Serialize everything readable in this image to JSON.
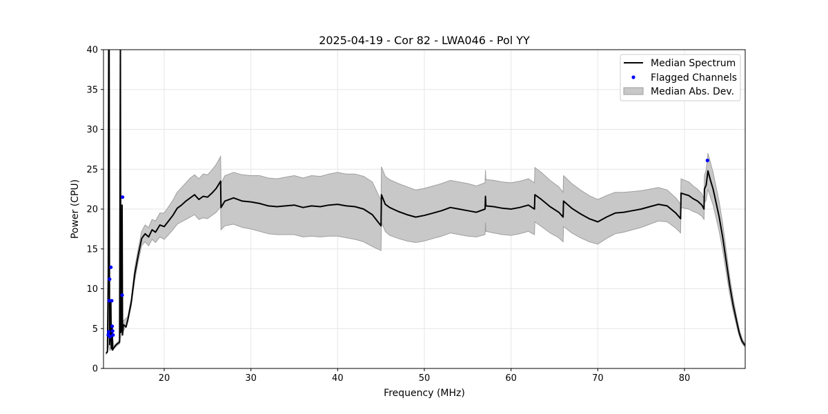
{
  "chart_data": {
    "type": "line",
    "title": "2025-04-19 - Cor 82 - LWA046 - Pol YY",
    "xlabel": "Frequency (MHz)",
    "ylabel": "Power (CPU)",
    "xlim": [
      13,
      87
    ],
    "ylim": [
      0,
      40
    ],
    "xticks": [
      20,
      30,
      40,
      50,
      60,
      70,
      80
    ],
    "yticks": [
      0,
      5,
      10,
      15,
      20,
      25,
      30,
      35,
      40
    ],
    "grid": true,
    "legend_position": "top-right",
    "colors": {
      "median": "#000000",
      "flagged": "#0000ff",
      "band_fill": "#c8c8c8",
      "band_edge": "#9e9e9e",
      "grid": "#e6e6e6"
    },
    "series": [
      {
        "name": "Median Spectrum",
        "kind": "line",
        "points": [
          [
            13.3,
            1.9
          ],
          [
            13.45,
            2.1
          ],
          [
            13.55,
            12.0
          ],
          [
            13.6,
            41.0
          ],
          [
            13.65,
            40.5
          ],
          [
            13.7,
            3.0
          ],
          [
            13.8,
            5.0
          ],
          [
            13.85,
            8.5
          ],
          [
            13.9,
            2.5
          ],
          [
            14.0,
            5.2
          ],
          [
            14.05,
            2.3
          ],
          [
            14.2,
            2.6
          ],
          [
            14.4,
            2.9
          ],
          [
            14.6,
            3.1
          ],
          [
            14.85,
            3.3
          ],
          [
            14.95,
            41.0
          ],
          [
            15.0,
            4.5
          ],
          [
            15.1,
            5.0
          ],
          [
            15.15,
            20.5
          ],
          [
            15.2,
            4.2
          ],
          [
            15.3,
            5.5
          ],
          [
            15.6,
            5.2
          ],
          [
            15.8,
            6.1
          ],
          [
            16.2,
            8.3
          ],
          [
            16.6,
            11.8
          ],
          [
            17.0,
            14.2
          ],
          [
            17.4,
            16.3
          ],
          [
            17.8,
            16.9
          ],
          [
            18.2,
            16.5
          ],
          [
            18.6,
            17.4
          ],
          [
            19.0,
            17.1
          ],
          [
            19.5,
            18.0
          ],
          [
            20.0,
            17.8
          ],
          [
            20.5,
            18.5
          ],
          [
            21.0,
            19.2
          ],
          [
            21.5,
            20.1
          ],
          [
            22.0,
            20.5
          ],
          [
            22.5,
            21.0
          ],
          [
            23.0,
            21.4
          ],
          [
            23.5,
            21.8
          ],
          [
            24.0,
            21.2
          ],
          [
            24.5,
            21.6
          ],
          [
            25.0,
            21.5
          ],
          [
            25.5,
            22.0
          ],
          [
            26.0,
            22.6
          ],
          [
            26.5,
            23.5
          ],
          [
            26.55,
            20.2
          ],
          [
            27.0,
            21.0
          ],
          [
            28.0,
            21.4
          ],
          [
            29.0,
            21.0
          ],
          [
            30.0,
            20.9
          ],
          [
            31.0,
            20.7
          ],
          [
            32.0,
            20.4
          ],
          [
            33.0,
            20.3
          ],
          [
            34.0,
            20.4
          ],
          [
            35.0,
            20.5
          ],
          [
            36.0,
            20.2
          ],
          [
            37.0,
            20.4
          ],
          [
            38.0,
            20.3
          ],
          [
            39.0,
            20.5
          ],
          [
            40.0,
            20.6
          ],
          [
            41.0,
            20.4
          ],
          [
            42.0,
            20.3
          ],
          [
            43.0,
            20.0
          ],
          [
            44.0,
            19.3
          ],
          [
            45.0,
            17.9
          ],
          [
            45.05,
            21.8
          ],
          [
            45.5,
            20.6
          ],
          [
            46.0,
            20.2
          ],
          [
            47.0,
            19.7
          ],
          [
            48.0,
            19.3
          ],
          [
            49.0,
            19.0
          ],
          [
            50.0,
            19.2
          ],
          [
            51.0,
            19.5
          ],
          [
            52.0,
            19.8
          ],
          [
            53.0,
            20.2
          ],
          [
            54.0,
            20.0
          ],
          [
            55.0,
            19.8
          ],
          [
            56.0,
            19.6
          ],
          [
            57.0,
            20.0
          ],
          [
            57.05,
            21.6
          ],
          [
            57.1,
            20.4
          ],
          [
            58.0,
            20.3
          ],
          [
            59.0,
            20.1
          ],
          [
            60.0,
            20.0
          ],
          [
            61.0,
            20.2
          ],
          [
            62.0,
            20.5
          ],
          [
            62.7,
            20.0
          ],
          [
            62.75,
            21.8
          ],
          [
            63.5,
            21.2
          ],
          [
            64.5,
            20.3
          ],
          [
            65.5,
            19.6
          ],
          [
            66.0,
            19.0
          ],
          [
            66.05,
            21.0
          ],
          [
            67.0,
            20.1
          ],
          [
            68.0,
            19.4
          ],
          [
            69.0,
            18.8
          ],
          [
            70.0,
            18.4
          ],
          [
            71.0,
            19.0
          ],
          [
            72.0,
            19.5
          ],
          [
            73.0,
            19.6
          ],
          [
            74.0,
            19.8
          ],
          [
            75.0,
            20.0
          ],
          [
            76.0,
            20.3
          ],
          [
            77.0,
            20.6
          ],
          [
            78.0,
            20.4
          ],
          [
            79.0,
            19.5
          ],
          [
            79.55,
            18.8
          ],
          [
            79.6,
            22.0
          ],
          [
            80.5,
            21.7
          ],
          [
            81.0,
            21.3
          ],
          [
            81.5,
            21.0
          ],
          [
            82.0,
            20.5
          ],
          [
            82.25,
            20.0
          ],
          [
            82.3,
            22.5
          ],
          [
            82.5,
            23.0
          ],
          [
            82.7,
            24.8
          ],
          [
            83.0,
            23.6
          ],
          [
            83.3,
            22.5
          ],
          [
            83.6,
            21.0
          ],
          [
            84.0,
            19.0
          ],
          [
            84.4,
            16.5
          ],
          [
            84.8,
            13.5
          ],
          [
            85.2,
            10.5
          ],
          [
            85.6,
            8.0
          ],
          [
            86.0,
            6.0
          ],
          [
            86.3,
            4.5
          ],
          [
            86.6,
            3.5
          ],
          [
            86.95,
            2.9
          ]
        ]
      },
      {
        "name": "Flagged Channels",
        "kind": "scatter",
        "points": [
          [
            13.55,
            4.2
          ],
          [
            13.6,
            4.6
          ],
          [
            13.65,
            8.5
          ],
          [
            13.7,
            11.2
          ],
          [
            13.75,
            4.0
          ],
          [
            13.85,
            12.7
          ],
          [
            13.95,
            8.5
          ],
          [
            14.0,
            5.3
          ],
          [
            14.05,
            4.7
          ],
          [
            14.1,
            4.2
          ],
          [
            15.15,
            9.2
          ],
          [
            15.2,
            21.5
          ],
          [
            82.65,
            26.1
          ]
        ]
      },
      {
        "name": "Median Abs. Dev.",
        "kind": "band",
        "points": [
          [
            13.3,
            1.8,
            2.0
          ],
          [
            13.45,
            2.0,
            2.3
          ],
          [
            13.55,
            3.0,
            14.0
          ],
          [
            13.7,
            2.3,
            8.5
          ],
          [
            13.9,
            2.3,
            5.0
          ],
          [
            14.2,
            2.5,
            2.8
          ],
          [
            14.6,
            2.9,
            3.3
          ],
          [
            14.85,
            3.1,
            3.6
          ],
          [
            14.95,
            3.8,
            36.0
          ],
          [
            15.05,
            4.2,
            5.8
          ],
          [
            15.3,
            4.7,
            6.0
          ],
          [
            15.8,
            5.8,
            6.5
          ],
          [
            16.2,
            7.8,
            8.8
          ],
          [
            16.6,
            11.0,
            12.6
          ],
          [
            17.0,
            13.4,
            15.0
          ],
          [
            17.4,
            15.4,
            17.2
          ],
          [
            17.8,
            15.9,
            18.0
          ],
          [
            18.2,
            15.4,
            17.7
          ],
          [
            18.6,
            16.2,
            18.7
          ],
          [
            19.0,
            15.8,
            18.5
          ],
          [
            19.5,
            16.5,
            19.5
          ],
          [
            20.0,
            16.2,
            19.5
          ],
          [
            20.5,
            16.8,
            20.3
          ],
          [
            21.0,
            17.4,
            21.1
          ],
          [
            21.5,
            18.1,
            22.1
          ],
          [
            22.0,
            18.4,
            22.7
          ],
          [
            22.5,
            18.7,
            23.3
          ],
          [
            23.0,
            19.0,
            23.9
          ],
          [
            23.5,
            19.3,
            24.3
          ],
          [
            24.0,
            18.7,
            23.8
          ],
          [
            24.5,
            18.9,
            24.4
          ],
          [
            25.0,
            18.8,
            24.3
          ],
          [
            25.5,
            19.2,
            24.9
          ],
          [
            26.0,
            19.6,
            25.6
          ],
          [
            26.5,
            20.3,
            26.6
          ],
          [
            26.55,
            17.4,
            23.2
          ],
          [
            27.0,
            17.9,
            24.2
          ],
          [
            28.0,
            18.1,
            24.6
          ],
          [
            29.0,
            17.7,
            24.3
          ],
          [
            30.0,
            17.5,
            24.2
          ],
          [
            31.0,
            17.2,
            24.2
          ],
          [
            32.0,
            16.9,
            23.9
          ],
          [
            33.0,
            16.8,
            23.8
          ],
          [
            34.0,
            16.8,
            24.0
          ],
          [
            35.0,
            16.8,
            24.2
          ],
          [
            36.0,
            16.5,
            23.9
          ],
          [
            37.0,
            16.6,
            24.2
          ],
          [
            38.0,
            16.5,
            24.1
          ],
          [
            39.0,
            16.6,
            24.4
          ],
          [
            40.0,
            16.6,
            24.6
          ],
          [
            41.0,
            16.4,
            24.4
          ],
          [
            42.0,
            16.2,
            24.4
          ],
          [
            43.0,
            15.9,
            24.1
          ],
          [
            44.0,
            15.3,
            23.4
          ],
          [
            45.0,
            14.8,
            21.1
          ],
          [
            45.05,
            18.3,
            25.3
          ],
          [
            45.5,
            17.2,
            24.1
          ],
          [
            46.0,
            16.7,
            23.7
          ],
          [
            47.0,
            16.3,
            23.2
          ],
          [
            48.0,
            16.0,
            22.8
          ],
          [
            49.0,
            15.8,
            22.4
          ],
          [
            50.0,
            16.0,
            22.6
          ],
          [
            51.0,
            16.3,
            22.9
          ],
          [
            52.0,
            16.6,
            23.2
          ],
          [
            53.0,
            17.0,
            23.6
          ],
          [
            54.0,
            16.8,
            23.4
          ],
          [
            55.0,
            16.6,
            23.2
          ],
          [
            56.0,
            16.5,
            22.9
          ],
          [
            57.0,
            16.8,
            23.3
          ],
          [
            57.05,
            18.3,
            24.9
          ],
          [
            57.1,
            17.2,
            23.7
          ],
          [
            58.0,
            17.0,
            23.6
          ],
          [
            59.0,
            16.8,
            23.4
          ],
          [
            60.0,
            16.7,
            23.3
          ],
          [
            61.0,
            16.9,
            23.5
          ],
          [
            62.0,
            17.2,
            23.8
          ],
          [
            62.7,
            16.8,
            23.3
          ],
          [
            62.75,
            18.4,
            25.2
          ],
          [
            63.5,
            17.8,
            24.6
          ],
          [
            64.5,
            17.0,
            23.6
          ],
          [
            65.5,
            16.4,
            22.8
          ],
          [
            66.0,
            15.9,
            22.1
          ],
          [
            66.05,
            17.8,
            24.2
          ],
          [
            67.0,
            17.0,
            23.2
          ],
          [
            68.0,
            16.4,
            22.4
          ],
          [
            69.0,
            15.9,
            21.7
          ],
          [
            70.0,
            15.6,
            21.2
          ],
          [
            71.0,
            16.3,
            21.7
          ],
          [
            72.0,
            16.9,
            22.1
          ],
          [
            73.0,
            17.1,
            22.1
          ],
          [
            74.0,
            17.4,
            22.2
          ],
          [
            75.0,
            17.7,
            22.3
          ],
          [
            76.0,
            18.1,
            22.5
          ],
          [
            77.0,
            18.5,
            22.7
          ],
          [
            78.0,
            18.4,
            22.4
          ],
          [
            79.0,
            17.6,
            21.4
          ],
          [
            79.55,
            17.0,
            20.6
          ],
          [
            79.6,
            20.2,
            23.8
          ],
          [
            80.5,
            20.0,
            23.4
          ],
          [
            81.0,
            19.7,
            22.9
          ],
          [
            81.5,
            19.5,
            22.5
          ],
          [
            82.0,
            19.1,
            21.9
          ],
          [
            82.25,
            18.7,
            21.3
          ],
          [
            82.3,
            20.8,
            24.2
          ],
          [
            82.5,
            21.1,
            24.9
          ],
          [
            82.7,
            22.5,
            27.0
          ],
          [
            83.0,
            21.5,
            25.8
          ],
          [
            83.3,
            20.5,
            24.6
          ],
          [
            83.6,
            19.1,
            23.0
          ],
          [
            84.0,
            17.2,
            20.9
          ],
          [
            84.4,
            14.9,
            18.2
          ],
          [
            84.8,
            12.1,
            14.9
          ],
          [
            85.2,
            9.4,
            11.6
          ],
          [
            85.6,
            7.2,
            8.9
          ],
          [
            86.0,
            5.4,
            6.6
          ],
          [
            86.3,
            4.1,
            5.0
          ],
          [
            86.6,
            3.2,
            3.9
          ],
          [
            86.95,
            2.7,
            3.1
          ]
        ]
      }
    ],
    "legend": [
      {
        "label": "Median Spectrum",
        "kind": "line"
      },
      {
        "label": "Flagged Channels",
        "kind": "scatter"
      },
      {
        "label": "Median Abs. Dev.",
        "kind": "band"
      }
    ]
  }
}
